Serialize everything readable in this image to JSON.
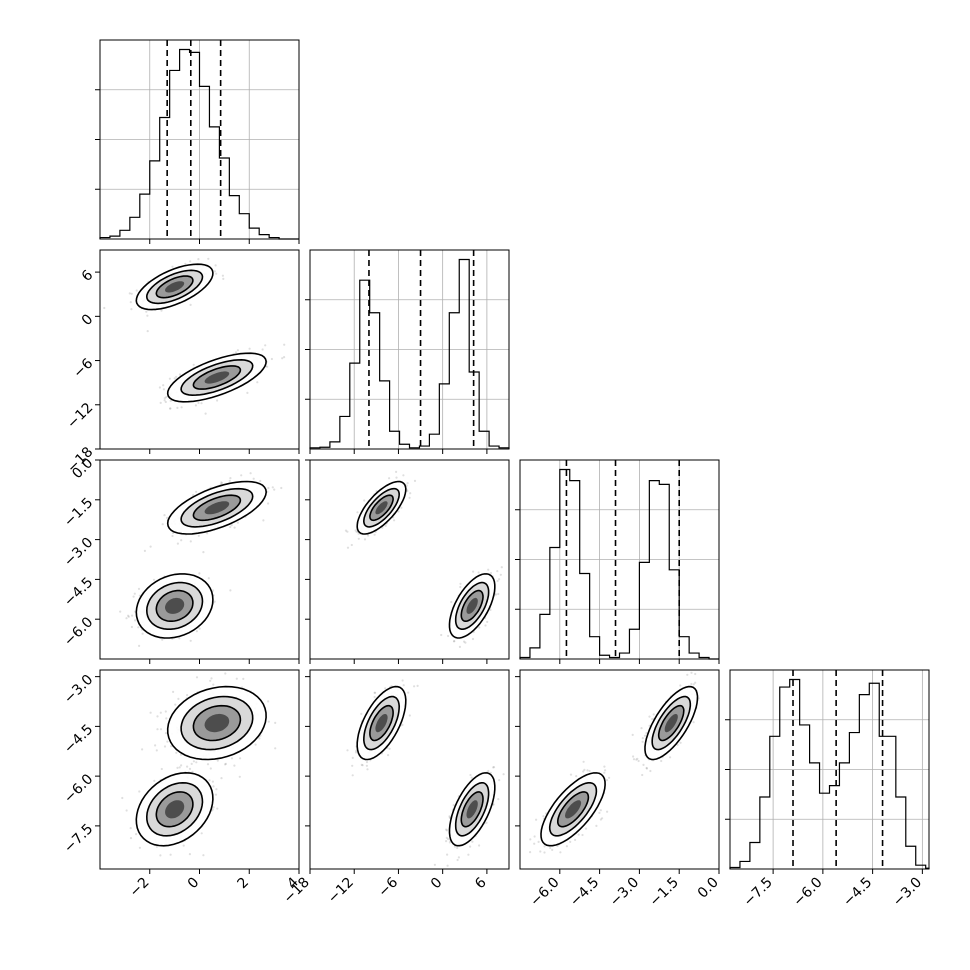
{
  "chart_data": {
    "type": "corner",
    "title": "",
    "grid": true,
    "variables": [
      {
        "label": "",
        "range": [
          -4,
          4
        ],
        "ticks": [
          "−2",
          "0",
          "2",
          "4"
        ],
        "tick_values": [
          -2,
          0,
          2,
          4
        ]
      },
      {
        "label": "",
        "range": [
          -18,
          9
        ],
        "ticks": [
          "−18",
          "−12",
          "−6",
          "0",
          "6"
        ],
        "tick_values": [
          -18,
          -12,
          -6,
          0,
          6
        ]
      },
      {
        "label": "",
        "range": [
          -7.5,
          0
        ],
        "ticks": [
          "−6.0",
          "−4.5",
          "−3.0",
          "−1.5",
          "0.0"
        ],
        "tick_values": [
          -6.0,
          -4.5,
          -3.0,
          -1.5,
          0.0
        ]
      },
      {
        "label": "",
        "range": [
          -8.8,
          -2.8
        ],
        "ticks": [
          "−7.5",
          "−6.0",
          "−4.5",
          "−3.0"
        ],
        "tick_values": [
          -7.5,
          -6.0,
          -4.5,
          -3.0
        ]
      }
    ],
    "quantile_lines": [
      [
        -1.3,
        -0.35,
        0.85
      ],
      [
        -10.0,
        -3.0,
        4.2
      ],
      [
        -5.75,
        -3.9,
        -1.5
      ],
      [
        -6.9,
        -5.6,
        -4.2
      ]
    ],
    "histograms": [
      {
        "edges": [
          -4,
          -3.6,
          -3.2,
          -2.8,
          -2.4,
          -2.0,
          -1.6,
          -1.2,
          -0.8,
          -0.4,
          0.0,
          0.4,
          0.8,
          1.2,
          1.6,
          2.0,
          2.4,
          2.8,
          3.2,
          3.6,
          4.0
        ],
        "counts": [
          2,
          4,
          12,
          30,
          62,
          108,
          168,
          233,
          262,
          258,
          211,
          155,
          112,
          60,
          35,
          15,
          6,
          2,
          0,
          0
        ]
      },
      {
        "edges": [
          -18,
          -16.65,
          -15.3,
          -13.95,
          -12.6,
          -11.25,
          -9.9,
          -8.55,
          -7.2,
          -5.85,
          -4.5,
          -3.15,
          -1.8,
          -0.45,
          0.9,
          2.25,
          3.6,
          4.95,
          6.3,
          7.65,
          9.0
        ],
        "counts": [
          2,
          3,
          12,
          55,
          145,
          285,
          230,
          115,
          30,
          8,
          2,
          5,
          25,
          110,
          230,
          320,
          130,
          30,
          5,
          2
        ]
      },
      {
        "edges": [
          -7.5,
          -7.125,
          -6.75,
          -6.375,
          -6.0,
          -5.625,
          -5.25,
          -4.875,
          -4.5,
          -4.125,
          -3.75,
          -3.375,
          -3.0,
          -2.625,
          -2.25,
          -1.875,
          -1.5,
          -1.125,
          -0.75,
          -0.375,
          0.0
        ],
        "counts": [
          2,
          15,
          60,
          150,
          255,
          240,
          115,
          30,
          5,
          2,
          8,
          40,
          130,
          240,
          235,
          120,
          30,
          8,
          2,
          0
        ]
      },
      {
        "edges": [
          -8.8,
          -8.5,
          -8.2,
          -7.9,
          -7.6,
          -7.3,
          -7.0,
          -6.7,
          -6.4,
          -6.1,
          -5.8,
          -5.5,
          -5.2,
          -4.9,
          -4.6,
          -4.3,
          -3.8,
          -3.5,
          -3.2,
          -2.9,
          -2.8
        ],
        "counts": [
          2,
          10,
          35,
          95,
          175,
          240,
          250,
          190,
          140,
          100,
          110,
          140,
          180,
          230,
          245,
          175,
          95,
          30,
          5,
          1
        ]
      }
    ],
    "clusters": [
      {
        "name": "",
        "mean": [
          -1.0,
          4.0,
          -5.5,
          -7.0
        ],
        "sd": [
          0.7,
          1.4,
          0.55,
          0.5
        ]
      },
      {
        "name": "",
        "mean": [
          0.7,
          -8.3,
          -1.8,
          -4.4
        ],
        "sd": [
          0.9,
          1.5,
          0.45,
          0.5
        ]
      }
    ],
    "correlations": [
      {
        "pair": [
          0,
          1
        ],
        "per_cluster": [
          0.6,
          0.65
        ]
      },
      {
        "pair": [
          0,
          2
        ],
        "per_cluster": [
          0.2,
          0.6
        ]
      },
      {
        "pair": [
          1,
          2
        ],
        "per_cluster": [
          0.6,
          0.7
        ]
      },
      {
        "pair": [
          0,
          3
        ],
        "per_cluster": [
          0.3,
          0.2
        ]
      },
      {
        "pair": [
          1,
          3
        ],
        "per_cluster": [
          0.6,
          0.6
        ]
      },
      {
        "pair": [
          2,
          3
        ],
        "per_cluster": [
          0.7,
          0.7
        ]
      }
    ]
  }
}
